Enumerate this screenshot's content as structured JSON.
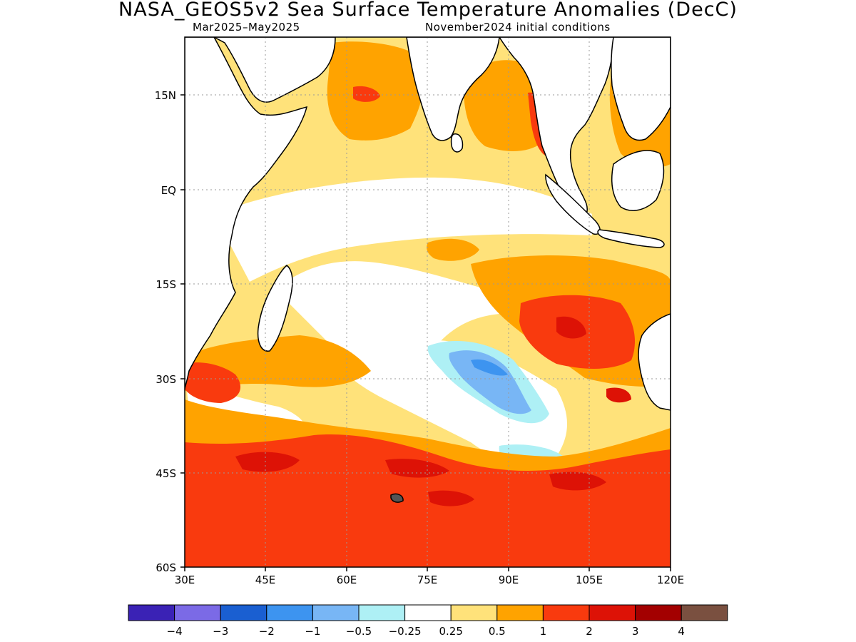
{
  "header": {
    "title": "NASA_GEOS5v2 Sea Surface Temperature Anomalies (DecC)",
    "period": "Mar2025–May2025",
    "initial_conditions": "November2024 initial conditions"
  },
  "map": {
    "lon_range": [
      30,
      120
    ],
    "lat_range": [
      -60,
      24
    ],
    "lon_ticks": [
      "30E",
      "45E",
      "60E",
      "75E",
      "90E",
      "105E",
      "120E"
    ],
    "lat_ticks": [
      "15N",
      "EQ",
      "15S",
      "30S",
      "45S",
      "60S"
    ],
    "gridlines": true,
    "land_color": "#ffffff",
    "coast_color": "#000000"
  },
  "colorbar": {
    "colors": [
      "#3a22b5",
      "#7b6ae6",
      "#1a5fd1",
      "#3d94f0",
      "#78b6f5",
      "#aef0f5",
      "#ffffff",
      "#ffe27a",
      "#ffa300",
      "#f93a0e",
      "#dd1206",
      "#a30000",
      "#7a5040"
    ],
    "labels": [
      "−4",
      "−3",
      "−2",
      "−1",
      "−0.5",
      "−0.25",
      "0.25",
      "0.5",
      "1",
      "2",
      "3",
      "4"
    ]
  }
}
